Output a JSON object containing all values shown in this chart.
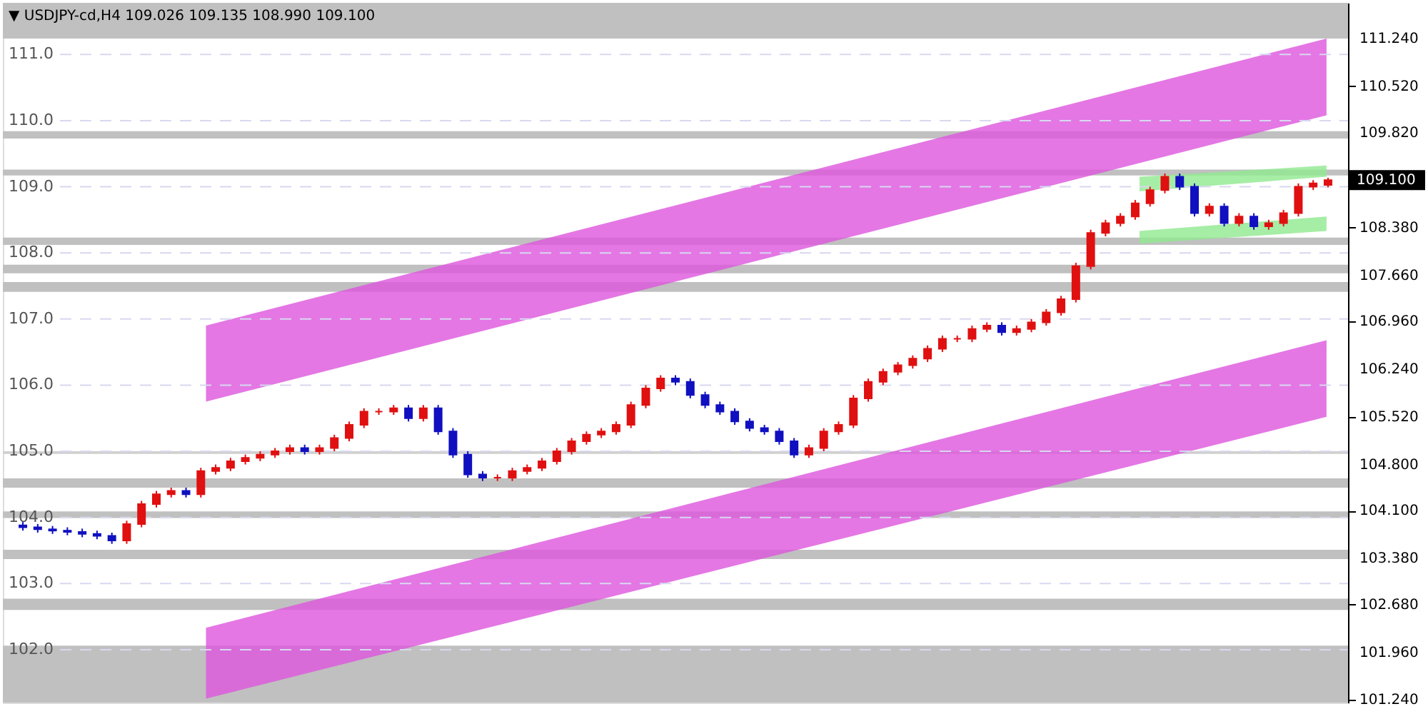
{
  "chart_data": {
    "type": "candlestick",
    "title": "▼ USDJPY-cd,H4  109.026 109.135 108.990 109.100",
    "categories": [
      null,
      null,
      null,
      null,
      null,
      null,
      null,
      null,
      null,
      null,
      null,
      null,
      null,
      null,
      null,
      null,
      null,
      null,
      null,
      null,
      null,
      null,
      null,
      null,
      null,
      null,
      null,
      null,
      null,
      null,
      null,
      null,
      null,
      null,
      null,
      null,
      null,
      null,
      null,
      null,
      null,
      null,
      null,
      null,
      null,
      null,
      null,
      null,
      null,
      null,
      null,
      null,
      null,
      null,
      null,
      null,
      null,
      null,
      null,
      null,
      null,
      null,
      null,
      null,
      null,
      null,
      null,
      null,
      null,
      null,
      null,
      null,
      null,
      null,
      null,
      null,
      null,
      null,
      null,
      null,
      null,
      null,
      null,
      null,
      null,
      null,
      null,
      null,
      null
    ],
    "ylim": [
      101.2,
      111.78
    ],
    "tick_labels": "y",
    "grid": false,
    "yticks": [
      {
        "value": 101.24,
        "label": "101.240"
      },
      {
        "value": 101.96,
        "label": "101.960"
      },
      {
        "value": 102.68,
        "label": "102.680"
      },
      {
        "value": 103.38,
        "label": "103.380"
      },
      {
        "value": 104.1,
        "label": "104.100"
      },
      {
        "value": 104.8,
        "label": "104.800"
      },
      {
        "value": 105.52,
        "label": "105.520"
      },
      {
        "value": 106.24,
        "label": "106.240"
      },
      {
        "value": 106.96,
        "label": "106.960"
      },
      {
        "value": 107.66,
        "label": "107.660"
      },
      {
        "value": 108.38,
        "label": "108.380"
      },
      {
        "value": 109.82,
        "label": "109.820"
      },
      {
        "value": 110.52,
        "label": "110.520"
      },
      {
        "value": 111.24,
        "label": "111.240"
      }
    ],
    "series": [
      {
        "colors": [
          "#1010c0",
          "#1010c0",
          "#1010c0",
          "#1010c0",
          "#1010c0",
          "#1010c0",
          "#1010c0",
          "#e01010",
          "#e01010",
          "#e01010",
          "#e01010",
          "#1010c0",
          "#e01010",
          "#e01010",
          "#e01010",
          "#e01010",
          "#e01010",
          "#e01010",
          "#e01010",
          "#1010c0",
          "#e01010",
          "#e01010",
          "#e01010",
          "#e01010",
          "#e01010",
          "#e01010",
          "#1010c0",
          "#e01010",
          "#1010c0",
          "#1010c0",
          "#1010c0",
          "#1010c0",
          "#e01010",
          "#e01010",
          "#e01010",
          "#e01010",
          "#e01010",
          "#e01010",
          "#e01010",
          "#e01010",
          "#e01010",
          "#e01010",
          "#e01010",
          "#e01010",
          "#1010c0",
          "#1010c0",
          "#1010c0",
          "#1010c0",
          "#1010c0",
          "#1010c0",
          "#1010c0",
          "#1010c0",
          "#1010c0",
          "#e01010",
          "#e01010",
          "#e01010",
          "#e01010",
          "#e01010",
          "#e01010",
          "#e01010",
          "#e01010",
          "#e01010",
          "#e01010",
          "#e01010",
          "#e01010",
          "#e01010",
          "#1010c0",
          "#e01010",
          "#e01010",
          "#e01010",
          "#e01010",
          "#e01010",
          "#e01010",
          "#e01010",
          "#e01010",
          "#e01010",
          "#e01010",
          "#e01010",
          "#1010c0",
          "#1010c0",
          "#e01010",
          "#1010c0",
          "#e01010",
          "#1010c0",
          "#e01010",
          "#e01010",
          "#e01010",
          "#e01010",
          "#e01010"
        ],
        "ohlc": [
          [
            103.88,
            103.93,
            103.8,
            103.85
          ],
          [
            103.85,
            103.9,
            103.77,
            103.82
          ],
          [
            103.82,
            103.87,
            103.75,
            103.8
          ],
          [
            103.8,
            103.85,
            103.73,
            103.78
          ],
          [
            103.78,
            103.83,
            103.7,
            103.75
          ],
          [
            103.75,
            103.8,
            103.67,
            103.72
          ],
          [
            103.72,
            103.77,
            103.6,
            103.65
          ],
          [
            103.65,
            103.95,
            103.6,
            103.9
          ],
          [
            103.9,
            104.25,
            103.85,
            104.2
          ],
          [
            104.2,
            104.4,
            104.15,
            104.35
          ],
          [
            104.35,
            104.45,
            104.3,
            104.4
          ],
          [
            104.4,
            104.45,
            104.3,
            104.35
          ],
          [
            104.35,
            104.75,
            104.3,
            104.7
          ],
          [
            104.7,
            104.8,
            104.65,
            104.75
          ],
          [
            104.75,
            104.9,
            104.7,
            104.85
          ],
          [
            104.85,
            104.95,
            104.8,
            104.9
          ],
          [
            104.9,
            105.0,
            104.85,
            104.95
          ],
          [
            104.95,
            105.05,
            104.9,
            105.0
          ],
          [
            105.0,
            105.1,
            104.95,
            105.05
          ],
          [
            105.05,
            105.1,
            104.95,
            105.0
          ],
          [
            105.0,
            105.1,
            104.95,
            105.05
          ],
          [
            105.05,
            105.25,
            105.0,
            105.2
          ],
          [
            105.2,
            105.45,
            105.15,
            105.4
          ],
          [
            105.4,
            105.65,
            105.35,
            105.6
          ],
          [
            105.6,
            105.65,
            105.55,
            105.6
          ],
          [
            105.6,
            105.7,
            105.55,
            105.65
          ],
          [
            105.65,
            105.7,
            105.45,
            105.5
          ],
          [
            105.5,
            105.7,
            105.45,
            105.65
          ],
          [
            105.65,
            105.7,
            105.25,
            105.3
          ],
          [
            105.3,
            105.35,
            104.9,
            104.95
          ],
          [
            104.95,
            105.0,
            104.6,
            104.65
          ],
          [
            104.65,
            104.7,
            104.55,
            104.6
          ],
          [
            104.6,
            104.65,
            104.55,
            104.6
          ],
          [
            104.6,
            104.75,
            104.55,
            104.7
          ],
          [
            104.7,
            104.8,
            104.65,
            104.75
          ],
          [
            104.75,
            104.9,
            104.7,
            104.85
          ],
          [
            104.85,
            105.05,
            104.8,
            105.0
          ],
          [
            105.0,
            105.2,
            104.95,
            105.15
          ],
          [
            105.15,
            105.3,
            105.1,
            105.25
          ],
          [
            105.25,
            105.35,
            105.2,
            105.3
          ],
          [
            105.3,
            105.45,
            105.25,
            105.4
          ],
          [
            105.4,
            105.75,
            105.35,
            105.7
          ],
          [
            105.7,
            106.0,
            105.65,
            105.95
          ],
          [
            105.95,
            106.15,
            105.9,
            106.1
          ],
          [
            106.1,
            106.15,
            106.0,
            106.05
          ],
          [
            106.05,
            106.1,
            105.8,
            105.85
          ],
          [
            105.85,
            105.9,
            105.65,
            105.7
          ],
          [
            105.7,
            105.75,
            105.55,
            105.6
          ],
          [
            105.6,
            105.65,
            105.4,
            105.45
          ],
          [
            105.45,
            105.5,
            105.3,
            105.35
          ],
          [
            105.35,
            105.4,
            105.25,
            105.3
          ],
          [
            105.3,
            105.35,
            105.1,
            105.15
          ],
          [
            105.15,
            105.2,
            104.9,
            104.95
          ],
          [
            104.95,
            105.1,
            104.9,
            105.05
          ],
          [
            105.05,
            105.35,
            105.0,
            105.3
          ],
          [
            105.3,
            105.45,
            105.25,
            105.4
          ],
          [
            105.4,
            105.85,
            105.35,
            105.8
          ],
          [
            105.8,
            106.1,
            105.75,
            106.05
          ],
          [
            106.05,
            106.25,
            106.0,
            106.2
          ],
          [
            106.2,
            106.35,
            106.15,
            106.3
          ],
          [
            106.3,
            106.45,
            106.25,
            106.4
          ],
          [
            106.4,
            106.6,
            106.35,
            106.55
          ],
          [
            106.55,
            106.75,
            106.5,
            106.7
          ],
          [
            106.7,
            106.75,
            106.65,
            106.7
          ],
          [
            106.7,
            106.9,
            106.65,
            106.85
          ],
          [
            106.85,
            106.95,
            106.8,
            106.9
          ],
          [
            106.9,
            106.95,
            106.75,
            106.8
          ],
          [
            106.8,
            106.9,
            106.75,
            106.85
          ],
          [
            106.85,
            107.0,
            106.8,
            106.95
          ],
          [
            106.95,
            107.15,
            106.9,
            107.1
          ],
          [
            107.1,
            107.35,
            107.05,
            107.3
          ],
          [
            107.3,
            107.85,
            107.25,
            107.8
          ],
          [
            107.8,
            108.35,
            107.75,
            108.3
          ],
          [
            108.3,
            108.5,
            108.25,
            108.45
          ],
          [
            108.45,
            108.6,
            108.4,
            108.55
          ],
          [
            108.55,
            108.8,
            108.5,
            108.75
          ],
          [
            108.75,
            109.0,
            108.7,
            108.95
          ],
          [
            108.95,
            109.2,
            108.9,
            109.15
          ],
          [
            109.15,
            109.2,
            108.95,
            109.0
          ],
          [
            109.0,
            109.05,
            108.55,
            108.6
          ],
          [
            108.6,
            108.75,
            108.55,
            108.7
          ],
          [
            108.7,
            108.75,
            108.4,
            108.45
          ],
          [
            108.45,
            108.6,
            108.4,
            108.55
          ],
          [
            108.55,
            108.6,
            108.35,
            108.4
          ],
          [
            108.4,
            108.5,
            108.35,
            108.45
          ],
          [
            108.45,
            108.65,
            108.4,
            108.6
          ],
          [
            108.6,
            109.05,
            108.55,
            109.0
          ],
          [
            109.0,
            109.1,
            108.95,
            109.05
          ],
          [
            109.026,
            109.135,
            108.99,
            109.1
          ]
        ]
      }
    ],
    "bands": [
      {
        "axis": "y",
        "from": 111.24,
        "to": 111.78,
        "color": "#c0c0c0"
      },
      {
        "axis": "y",
        "from": 109.73,
        "to": 109.84,
        "color": "#c0c0c0"
      },
      {
        "axis": "y",
        "from": 109.17,
        "to": 109.26,
        "color": "#c0c0c0"
      },
      {
        "axis": "y",
        "from": 108.12,
        "to": 108.23,
        "color": "#c0c0c0"
      },
      {
        "axis": "y",
        "from": 107.69,
        "to": 107.82,
        "color": "#c0c0c0"
      },
      {
        "axis": "y",
        "from": 107.41,
        "to": 107.56,
        "color": "#c0c0c0"
      },
      {
        "axis": "y",
        "from": 104.96,
        "to": 105.0,
        "color": "#d0d0d0"
      },
      {
        "axis": "y",
        "from": 104.45,
        "to": 104.59,
        "color": "#c0c0c0"
      },
      {
        "axis": "y",
        "from": 103.99,
        "to": 104.09,
        "color": "#c0c0c0"
      },
      {
        "axis": "y",
        "from": 103.37,
        "to": 103.51,
        "color": "#c0c0c0"
      },
      {
        "axis": "y",
        "from": 102.6,
        "to": 102.77,
        "color": "#c0c0c0"
      },
      {
        "axis": "y",
        "from": 101.2,
        "to": 102.06,
        "color": "#c0c0c0"
      }
    ],
    "ref_lines": [
      {
        "axis": "y",
        "value": 102,
        "label": "102.0",
        "color": "#d8d8f0",
        "line_style": "dashed"
      },
      {
        "axis": "y",
        "value": 103,
        "label": "103.0",
        "color": "#d8d8f0",
        "line_style": "dashed"
      },
      {
        "axis": "y",
        "value": 104,
        "label": "104.0",
        "color": "#d8d8f0",
        "line_style": "dashed"
      },
      {
        "axis": "y",
        "value": 105,
        "label": "105.0",
        "color": "#d8d8f0",
        "line_style": "dashed"
      },
      {
        "axis": "y",
        "value": 106,
        "label": "106.0",
        "color": "#d8d8f0",
        "line_style": "dashed"
      },
      {
        "axis": "y",
        "value": 107,
        "label": "107.0",
        "color": "#d8d8f0",
        "line_style": "dashed"
      },
      {
        "axis": "y",
        "value": 108,
        "label": "108.0",
        "color": "#d8d8f0",
        "line_style": "dashed"
      },
      {
        "axis": "y",
        "value": 109,
        "label": "109.0",
        "color": "#d8d8f0",
        "line_style": "dashed"
      },
      {
        "axis": "y",
        "value": 110,
        "label": "110.0",
        "color": "#d8d8f0",
        "line_style": "dashed"
      },
      {
        "axis": "y",
        "value": 111,
        "label": "111.0",
        "color": "#d8d8f0",
        "line_style": "dashed"
      }
    ],
    "annotations": [
      "109.100"
    ]
  }
}
